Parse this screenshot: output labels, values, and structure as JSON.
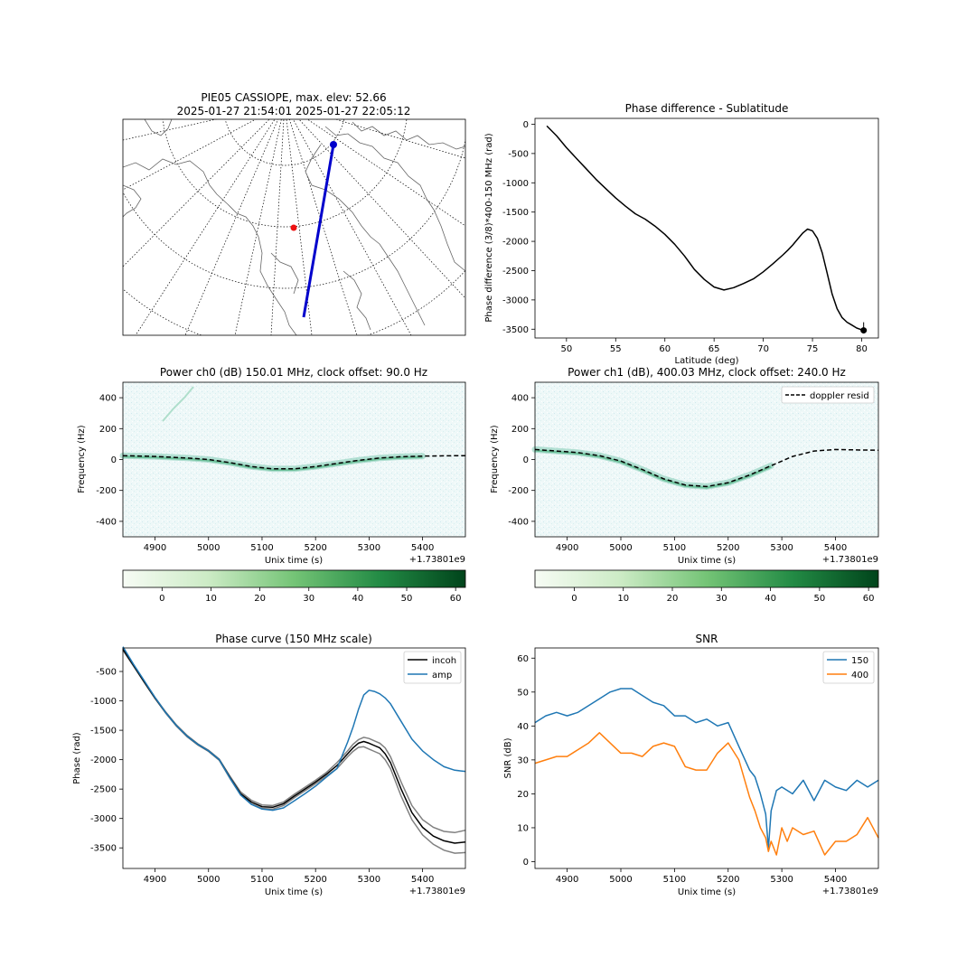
{
  "figure": {
    "map": {
      "title_line1": "PIE05 CASSIOPE, max. elev: 52.66",
      "title_line2": "2025-01-27 21:54:01 2025-01-27 22:05:12",
      "colors": {
        "track": "#0000cc",
        "station": "#ee1111",
        "coast": "#666666",
        "grid": "#000000"
      }
    },
    "offset_label": "+1.73801e9",
    "colorbar_ticks": [
      "0",
      "10",
      "20",
      "30",
      "40",
      "50",
      "60"
    ]
  },
  "chart_data": [
    {
      "id": "phase_lat",
      "type": "line",
      "title": "Phase difference - Sublatitude",
      "xlabel": "Latitude (deg)",
      "ylabel": "Phase difference (3/8)*400-150 MHz (rad)",
      "xlim": [
        46.8,
        81.7
      ],
      "ylim": [
        -3650,
        100
      ],
      "xticks": [
        50,
        55,
        60,
        65,
        70,
        75,
        80
      ],
      "yticks": [
        0,
        -500,
        -1000,
        -1500,
        -2000,
        -2500,
        -3000,
        -3500
      ],
      "series": [
        {
          "color": "#000000",
          "x": [
            48,
            49,
            50,
            51,
            52,
            53,
            54,
            55,
            56,
            57,
            58,
            59,
            60,
            61,
            62,
            63,
            64,
            65,
            66,
            67,
            68,
            69,
            70,
            71,
            72,
            72.5,
            73,
            73.5,
            74,
            74.5,
            75,
            75.5,
            76,
            76.5,
            77,
            77.5,
            78,
            78.5,
            79,
            79.5,
            80,
            80.2
          ],
          "y": [
            -30,
            -200,
            -400,
            -580,
            -760,
            -940,
            -1100,
            -1260,
            -1400,
            -1530,
            -1620,
            -1740,
            -1880,
            -2050,
            -2250,
            -2480,
            -2650,
            -2780,
            -2830,
            -2790,
            -2720,
            -2640,
            -2520,
            -2380,
            -2230,
            -2150,
            -2060,
            -1960,
            -1860,
            -1790,
            -1820,
            -1950,
            -2200,
            -2550,
            -2900,
            -3150,
            -3300,
            -3380,
            -3430,
            -3480,
            -3510,
            -3530
          ]
        }
      ],
      "endpoint": {
        "x": 80.2,
        "y": -3520
      }
    },
    {
      "id": "power_ch0",
      "type": "heatmap",
      "title": "Power ch0 (dB) 150.01 MHz, clock offset: 90.0 Hz",
      "xlabel": "Unix time (s)",
      "ylabel": "Frequency (Hz)",
      "xlim": [
        4840,
        5480
      ],
      "ylim": [
        -500,
        500
      ],
      "xticks": [
        4900,
        5000,
        5100,
        5200,
        5300,
        5400
      ],
      "yticks": [
        400,
        200,
        0,
        -200,
        -400
      ],
      "series": [
        {
          "name": "doppler resid",
          "style": "dashed",
          "color": "#000000",
          "x": [
            4840,
            4900,
            4960,
            5000,
            5040,
            5080,
            5120,
            5160,
            5200,
            5240,
            5280,
            5320,
            5360,
            5400,
            5440,
            5480
          ],
          "y": [
            25,
            20,
            10,
            0,
            -20,
            -45,
            -60,
            -60,
            -45,
            -25,
            -5,
            10,
            18,
            22,
            24,
            25
          ]
        }
      ]
    },
    {
      "id": "power_ch1",
      "type": "heatmap",
      "title": "Power ch1 (dB), 400.03 MHz, clock offset: 240.0 Hz",
      "xlabel": "Unix time (s)",
      "ylabel": "Frequency (Hz)",
      "xlim": [
        4840,
        5480
      ],
      "ylim": [
        -500,
        500
      ],
      "xticks": [
        4900,
        5000,
        5100,
        5200,
        5300,
        5400
      ],
      "yticks": [
        400,
        200,
        0,
        -200,
        -400
      ],
      "legend": "top-right",
      "series": [
        {
          "name": "doppler resid",
          "style": "dashed",
          "color": "#000000",
          "x": [
            4840,
            4880,
            4920,
            4960,
            5000,
            5040,
            5080,
            5120,
            5160,
            5200,
            5240,
            5280,
            5320,
            5360,
            5400,
            5440,
            5480
          ],
          "y": [
            65,
            55,
            45,
            25,
            -10,
            -65,
            -125,
            -165,
            -175,
            -150,
            -100,
            -40,
            20,
            55,
            65,
            62,
            60
          ]
        }
      ]
    },
    {
      "id": "phase_curve",
      "type": "line",
      "title": "Phase curve (150 MHz scale)",
      "xlabel": "Unix time (s)",
      "ylabel": "Phase (rad)",
      "xlim": [
        4840,
        5480
      ],
      "ylim": [
        -3850,
        -100
      ],
      "xticks": [
        4900,
        5000,
        5100,
        5200,
        5300,
        5400
      ],
      "yticks": [
        -500,
        -1000,
        -1500,
        -2000,
        -2500,
        -3000,
        -3500
      ],
      "legend": "top-right",
      "series": [
        {
          "name": "incoh",
          "color": "#000000",
          "x": [
            4840,
            4860,
            4880,
            4900,
            4920,
            4940,
            4960,
            4980,
            5000,
            5020,
            5040,
            5060,
            5080,
            5100,
            5120,
            5140,
            5160,
            5180,
            5200,
            5220,
            5240,
            5260,
            5270,
            5280,
            5290,
            5300,
            5310,
            5320,
            5330,
            5340,
            5360,
            5380,
            5400,
            5420,
            5440,
            5460,
            5480
          ],
          "y": [
            -120,
            -400,
            -680,
            -950,
            -1200,
            -1420,
            -1600,
            -1740,
            -1850,
            -2000,
            -2300,
            -2580,
            -2720,
            -2800,
            -2810,
            -2750,
            -2620,
            -2500,
            -2380,
            -2250,
            -2100,
            -1900,
            -1800,
            -1720,
            -1690,
            -1720,
            -1760,
            -1800,
            -1900,
            -2050,
            -2500,
            -2900,
            -3150,
            -3300,
            -3380,
            -3420,
            -3400
          ]
        },
        {
          "name": "amp",
          "color": "#1f77b4",
          "x": [
            4840,
            4860,
            4880,
            4900,
            4920,
            4940,
            4960,
            4980,
            5000,
            5020,
            5040,
            5060,
            5080,
            5100,
            5120,
            5140,
            5160,
            5180,
            5200,
            5220,
            5240,
            5260,
            5270,
            5280,
            5290,
            5300,
            5310,
            5320,
            5330,
            5340,
            5360,
            5380,
            5400,
            5420,
            5440,
            5460,
            5480
          ],
          "y": [
            -80,
            -380,
            -660,
            -940,
            -1200,
            -1420,
            -1600,
            -1740,
            -1850,
            -2000,
            -2310,
            -2600,
            -2760,
            -2840,
            -2860,
            -2820,
            -2700,
            -2580,
            -2450,
            -2300,
            -2150,
            -1700,
            -1450,
            -1150,
            -900,
            -820,
            -840,
            -880,
            -950,
            -1050,
            -1350,
            -1650,
            -1850,
            -2000,
            -2120,
            -2180,
            -2200
          ]
        }
      ],
      "bands": {
        "color": "#808080",
        "upper": [
          -100,
          -390,
          -670,
          -940,
          -1190,
          -1410,
          -1590,
          -1730,
          -1840,
          -1990,
          -2280,
          -2550,
          -2690,
          -2770,
          -2780,
          -2720,
          -2590,
          -2470,
          -2350,
          -2220,
          -2050,
          -1850,
          -1740,
          -1660,
          -1620,
          -1640,
          -1680,
          -1720,
          -1800,
          -1950,
          -2380,
          -2780,
          -3020,
          -3150,
          -3220,
          -3240,
          -3200
        ],
        "lower": [
          -140,
          -410,
          -690,
          -960,
          -1210,
          -1430,
          -1610,
          -1750,
          -1860,
          -2010,
          -2320,
          -2600,
          -2750,
          -2830,
          -2840,
          -2780,
          -2650,
          -2530,
          -2410,
          -2280,
          -2150,
          -1950,
          -1860,
          -1790,
          -1780,
          -1820,
          -1860,
          -1900,
          -2000,
          -2150,
          -2620,
          -3020,
          -3280,
          -3440,
          -3540,
          -3590,
          -3580
        ]
      }
    },
    {
      "id": "snr",
      "type": "line",
      "title": "SNR",
      "xlabel": "Unix time (s)",
      "ylabel": "SNR (dB)",
      "xlim": [
        4840,
        5480
      ],
      "ylim": [
        -2,
        63
      ],
      "xticks": [
        4900,
        5000,
        5100,
        5200,
        5300,
        5400
      ],
      "yticks": [
        60,
        50,
        40,
        30,
        20,
        10,
        0
      ],
      "legend": "top-right",
      "series": [
        {
          "name": "150",
          "color": "#1f77b4",
          "x": [
            4840,
            4860,
            4880,
            4900,
            4920,
            4940,
            4960,
            4980,
            5000,
            5020,
            5040,
            5060,
            5080,
            5100,
            5120,
            5140,
            5160,
            5180,
            5200,
            5220,
            5240,
            5250,
            5260,
            5270,
            5275,
            5280,
            5290,
            5300,
            5320,
            5340,
            5360,
            5380,
            5400,
            5420,
            5440,
            5460,
            5480
          ],
          "y": [
            41,
            43,
            44,
            43,
            44,
            46,
            48,
            50,
            51,
            51,
            49,
            47,
            46,
            43,
            43,
            41,
            42,
            40,
            41,
            34,
            27,
            25,
            20,
            14,
            4,
            15,
            21,
            22,
            20,
            24,
            18,
            24,
            22,
            21,
            24,
            22,
            24
          ]
        },
        {
          "name": "400",
          "color": "#ff7f0e",
          "x": [
            4840,
            4860,
            4880,
            4900,
            4920,
            4940,
            4960,
            4980,
            5000,
            5020,
            5040,
            5060,
            5080,
            5100,
            5120,
            5140,
            5160,
            5180,
            5200,
            5220,
            5240,
            5250,
            5260,
            5270,
            5275,
            5280,
            5290,
            5300,
            5310,
            5320,
            5340,
            5360,
            5380,
            5400,
            5420,
            5440,
            5460,
            5480
          ],
          "y": [
            29,
            30,
            31,
            31,
            33,
            35,
            38,
            35,
            32,
            32,
            31,
            34,
            35,
            34,
            28,
            27,
            27,
            32,
            35,
            30,
            19,
            15,
            10,
            7,
            3,
            6,
            2,
            10,
            6,
            10,
            8,
            9,
            2,
            6,
            6,
            8,
            13,
            7
          ]
        }
      ]
    }
  ]
}
